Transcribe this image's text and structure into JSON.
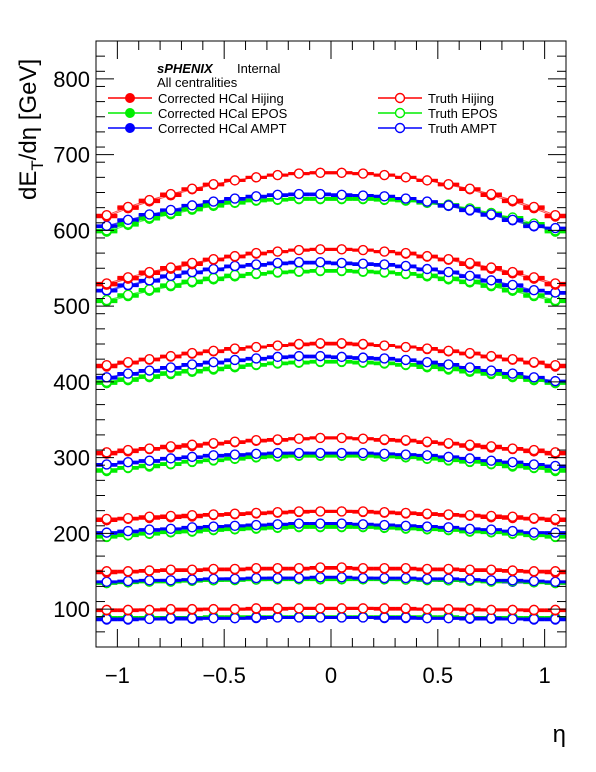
{
  "chart_data": {
    "type": "scatter",
    "title": "",
    "xlabel": "η",
    "ylabel_main": "dE",
    "ylabel_sub": "T",
    "ylabel_tail": "/dη [GeV]",
    "xlim": [
      -1.1,
      1.1
    ],
    "ylim": [
      50,
      850
    ],
    "x_ticks": [
      -1,
      -0.5,
      0,
      0.5,
      1
    ],
    "x_tick_labels": [
      "−1",
      "−0.5",
      "0",
      "0.5",
      "1"
    ],
    "y_ticks": [
      100,
      200,
      300,
      400,
      500,
      600,
      700,
      800
    ],
    "y_tick_labels": [
      "100",
      "200",
      "300",
      "400",
      "500",
      "600",
      "700",
      "800"
    ],
    "grid": false,
    "annotation": {
      "experiment": "sPHENIX",
      "status": "Internal",
      "selection": "All centralities"
    },
    "legend_position": "top",
    "x": [
      -1.05,
      -0.95,
      -0.85,
      -0.75,
      -0.65,
      -0.55,
      -0.45,
      -0.35,
      -0.25,
      -0.15,
      -0.05,
      0.05,
      0.15,
      0.25,
      0.35,
      0.45,
      0.55,
      0.65,
      0.75,
      0.85,
      0.95,
      1.05
    ],
    "band_centers": [
      88,
      98,
      137,
      148,
      203,
      217,
      291,
      305,
      408,
      418,
      510,
      528,
      600,
      618
    ],
    "band_amplitudes": [
      3,
      3,
      5,
      6,
      10,
      12,
      16,
      20,
      24,
      32,
      38,
      45,
      42,
      58
    ],
    "series": [
      {
        "name": "Corrected HCal Hijing",
        "color": "#ff0000",
        "marker": "filled",
        "values": [
          [
            98,
            98,
            99,
            99,
            99,
            100,
            100,
            100,
            100,
            101,
            101,
            101,
            101,
            100,
            100,
            100,
            100,
            99,
            99,
            99,
            98,
            98
          ],
          [
            148,
            149,
            150,
            151,
            151,
            152,
            152,
            153,
            153,
            153,
            154,
            154,
            153,
            153,
            153,
            152,
            152,
            151,
            151,
            150,
            149,
            148
          ],
          [
            217,
            219,
            220,
            221,
            222,
            224,
            225,
            226,
            227,
            228,
            229,
            229,
            228,
            227,
            226,
            225,
            224,
            223,
            221,
            220,
            219,
            217
          ],
          [
            305,
            308,
            311,
            313,
            315,
            318,
            320,
            322,
            323,
            325,
            326,
            326,
            325,
            323,
            322,
            320,
            318,
            315,
            313,
            311,
            308,
            305
          ],
          [
            420,
            425,
            429,
            433,
            437,
            440,
            443,
            446,
            448,
            449,
            450,
            450,
            449,
            448,
            446,
            443,
            440,
            437,
            433,
            429,
            425,
            420
          ],
          [
            528,
            536,
            543,
            549,
            555,
            561,
            565,
            569,
            572,
            574,
            575,
            575,
            574,
            572,
            569,
            565,
            561,
            555,
            549,
            543,
            536,
            528
          ],
          [
            618,
            629,
            638,
            646,
            654,
            660,
            666,
            670,
            673,
            675,
            676,
            676,
            675,
            673,
            670,
            666,
            660,
            654,
            646,
            638,
            629,
            618
          ]
        ]
      },
      {
        "name": "Corrected HCal EPOS",
        "color": "#00ee00",
        "marker": "filled",
        "values": [
          [
            88,
            88,
            88,
            89,
            89,
            89,
            89,
            89,
            89,
            89,
            89,
            89,
            89,
            89,
            89,
            89,
            89,
            89,
            88,
            88,
            88,
            88
          ],
          [
            134,
            135,
            136,
            136,
            137,
            138,
            138,
            139,
            139,
            139,
            139,
            139,
            139,
            139,
            139,
            138,
            138,
            137,
            136,
            136,
            135,
            134
          ],
          [
            195,
            197,
            199,
            201,
            202,
            204,
            205,
            206,
            207,
            208,
            208,
            208,
            208,
            207,
            206,
            205,
            204,
            202,
            201,
            199,
            197,
            195
          ],
          [
            282,
            286,
            288,
            291,
            294,
            296,
            298,
            300,
            301,
            302,
            302,
            302,
            302,
            301,
            300,
            298,
            296,
            294,
            291,
            288,
            286,
            282
          ],
          [
            398,
            402,
            406,
            410,
            413,
            416,
            419,
            422,
            424,
            425,
            426,
            426,
            425,
            424,
            422,
            419,
            416,
            413,
            410,
            406,
            402,
            398
          ],
          [
            506,
            513,
            520,
            526,
            531,
            535,
            539,
            542,
            544,
            545,
            546,
            546,
            545,
            544,
            542,
            539,
            535,
            531,
            526,
            520,
            513,
            506
          ],
          [
            598,
            607,
            615,
            621,
            627,
            632,
            636,
            639,
            640,
            641,
            641,
            641,
            641,
            640,
            639,
            636,
            632,
            627,
            621,
            615,
            607,
            598
          ]
        ]
      },
      {
        "name": "Corrected HCal AMPT",
        "color": "#0000ff",
        "marker": "filled",
        "values": [
          [
            86,
            86,
            87,
            87,
            87,
            88,
            88,
            88,
            89,
            89,
            89,
            89,
            89,
            88,
            88,
            88,
            88,
            87,
            87,
            87,
            86,
            86
          ],
          [
            135,
            136,
            137,
            138,
            138,
            139,
            140,
            140,
            141,
            141,
            141,
            141,
            141,
            140,
            140,
            139,
            138,
            138,
            137,
            136,
            136,
            135
          ],
          [
            200,
            202,
            204,
            205,
            207,
            208,
            209,
            210,
            211,
            212,
            212,
            212,
            211,
            210,
            209,
            208,
            207,
            205,
            204,
            202,
            200,
            200
          ],
          [
            290,
            293,
            295,
            298,
            300,
            302,
            303,
            304,
            305,
            306,
            305,
            305,
            305,
            304,
            303,
            302,
            300,
            298,
            295,
            293,
            290,
            288
          ],
          [
            405,
            410,
            414,
            418,
            422,
            425,
            428,
            430,
            432,
            433,
            433,
            432,
            431,
            430,
            428,
            425,
            422,
            418,
            414,
            410,
            405,
            400
          ],
          [
            520,
            527,
            533,
            539,
            544,
            548,
            552,
            554,
            556,
            557,
            557,
            556,
            555,
            554,
            552,
            548,
            544,
            539,
            533,
            527,
            520,
            517
          ],
          [
            605,
            613,
            620,
            626,
            632,
            637,
            641,
            644,
            646,
            647,
            647,
            646,
            645,
            644,
            641,
            637,
            632,
            626,
            620,
            613,
            605,
            602
          ]
        ]
      },
      {
        "name": "Truth Hijing",
        "color": "#ff0000",
        "marker": "open",
        "values": [
          [
            99,
            99,
            99,
            100,
            100,
            100,
            100,
            101,
            101,
            101,
            101,
            101,
            101,
            101,
            101,
            100,
            100,
            100,
            99,
            99,
            99,
            99
          ],
          [
            150,
            150,
            151,
            152,
            152,
            153,
            153,
            154,
            154,
            154,
            155,
            155,
            154,
            154,
            154,
            153,
            153,
            152,
            152,
            151,
            150,
            150
          ],
          [
            219,
            220,
            222,
            223,
            224,
            225,
            226,
            227,
            228,
            229,
            229,
            229,
            229,
            228,
            227,
            226,
            225,
            224,
            223,
            222,
            220,
            219
          ],
          [
            307,
            310,
            312,
            315,
            317,
            319,
            321,
            323,
            324,
            325,
            326,
            326,
            325,
            324,
            323,
            321,
            319,
            317,
            315,
            312,
            310,
            307
          ],
          [
            422,
            426,
            430,
            434,
            438,
            441,
            444,
            446,
            448,
            450,
            451,
            451,
            450,
            448,
            446,
            444,
            441,
            438,
            434,
            430,
            426,
            422
          ],
          [
            530,
            538,
            545,
            551,
            557,
            562,
            566,
            570,
            572,
            574,
            575,
            575,
            574,
            572,
            570,
            566,
            562,
            557,
            551,
            545,
            538,
            530
          ],
          [
            620,
            631,
            640,
            648,
            655,
            661,
            666,
            670,
            673,
            675,
            676,
            676,
            675,
            673,
            670,
            666,
            661,
            655,
            648,
            640,
            631,
            620
          ]
        ]
      },
      {
        "name": "Truth EPOS",
        "color": "#00ee00",
        "marker": "open",
        "values": [
          [
            89,
            89,
            89,
            89,
            89,
            90,
            90,
            90,
            90,
            90,
            90,
            90,
            90,
            90,
            90,
            90,
            90,
            89,
            89,
            89,
            89,
            89
          ],
          [
            135,
            136,
            137,
            137,
            138,
            138,
            139,
            139,
            140,
            140,
            140,
            140,
            140,
            140,
            139,
            139,
            138,
            138,
            137,
            137,
            136,
            135
          ],
          [
            196,
            198,
            200,
            202,
            203,
            205,
            206,
            207,
            208,
            209,
            209,
            209,
            209,
            208,
            207,
            206,
            205,
            203,
            202,
            200,
            198,
            196
          ],
          [
            284,
            287,
            290,
            292,
            295,
            297,
            299,
            301,
            302,
            303,
            303,
            303,
            303,
            302,
            301,
            299,
            297,
            295,
            292,
            290,
            287,
            284
          ],
          [
            400,
            404,
            408,
            412,
            415,
            418,
            421,
            423,
            425,
            426,
            427,
            427,
            426,
            425,
            423,
            421,
            418,
            415,
            412,
            408,
            404,
            400
          ],
          [
            508,
            515,
            522,
            528,
            533,
            537,
            541,
            543,
            545,
            546,
            547,
            547,
            546,
            545,
            543,
            541,
            537,
            533,
            528,
            522,
            515,
            508
          ],
          [
            600,
            609,
            617,
            623,
            629,
            634,
            637,
            640,
            641,
            642,
            642,
            642,
            642,
            641,
            640,
            637,
            634,
            629,
            623,
            617,
            609,
            600
          ]
        ]
      },
      {
        "name": "Truth AMPT",
        "color": "#0000ff",
        "marker": "open",
        "values": [
          [
            87,
            87,
            87,
            88,
            88,
            88,
            88,
            89,
            89,
            89,
            89,
            89,
            89,
            89,
            89,
            88,
            88,
            88,
            88,
            87,
            87,
            87
          ],
          [
            136,
            137,
            138,
            138,
            139,
            140,
            140,
            141,
            141,
            141,
            142,
            142,
            141,
            141,
            141,
            140,
            140,
            139,
            138,
            138,
            137,
            136
          ],
          [
            201,
            203,
            205,
            206,
            208,
            209,
            210,
            211,
            212,
            213,
            213,
            213,
            212,
            211,
            210,
            209,
            208,
            206,
            205,
            203,
            201,
            201
          ],
          [
            291,
            294,
            296,
            299,
            301,
            303,
            304,
            305,
            306,
            306,
            306,
            306,
            306,
            305,
            304,
            303,
            301,
            299,
            296,
            294,
            291,
            289
          ],
          [
            406,
            411,
            415,
            419,
            423,
            426,
            429,
            431,
            433,
            434,
            434,
            433,
            432,
            431,
            429,
            426,
            423,
            419,
            415,
            411,
            406,
            401
          ],
          [
            521,
            528,
            534,
            540,
            545,
            549,
            553,
            555,
            557,
            558,
            558,
            557,
            556,
            555,
            553,
            549,
            545,
            540,
            534,
            528,
            521,
            518
          ],
          [
            606,
            614,
            621,
            627,
            633,
            638,
            642,
            645,
            647,
            648,
            648,
            647,
            646,
            645,
            642,
            638,
            633,
            627,
            621,
            614,
            606,
            603
          ]
        ]
      }
    ]
  }
}
